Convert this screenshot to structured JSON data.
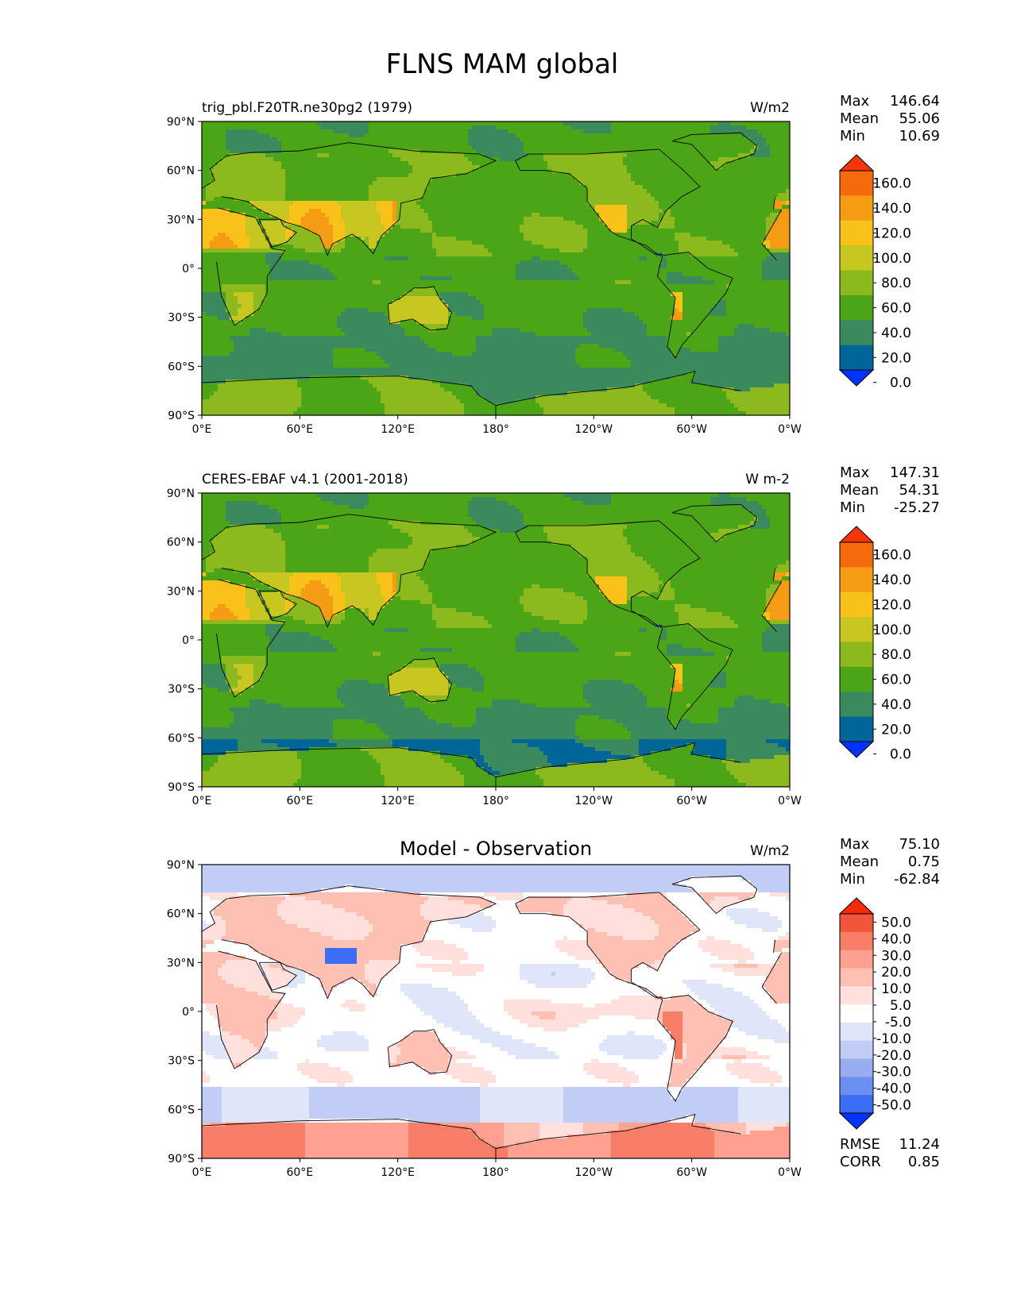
{
  "title": "FLNS MAM global",
  "axes": {
    "lat_ticks": [
      "90°N",
      "60°N",
      "30°N",
      "0°",
      "30°S",
      "60°S",
      "90°S"
    ],
    "lon_ticks": [
      "0°E",
      "60°E",
      "120°E",
      "180°",
      "120°W",
      "60°W",
      "0°W"
    ]
  },
  "colors": {
    "levels_abs": [
      "#0033ff",
      "#006699",
      "#3a8a5e",
      "#4ca516",
      "#8cba1e",
      "#c8c620",
      "#f8c21a",
      "#f59b14",
      "#f46a0c",
      "#f7340a"
    ],
    "levels_diff": [
      "#0033ff",
      "#3b6ef5",
      "#6c8ff2",
      "#98acf0",
      "#c2cdf5",
      "#e0e6fa",
      "#ffffff",
      "#ffe0dc",
      "#ffc0b4",
      "#ffa090",
      "#f87d66",
      "#f2553c",
      "#f72a08"
    ],
    "land_outline": "#000000"
  },
  "chart_data": [
    {
      "type": "heatmap",
      "subtitle": "trig_pbl.F20TR.ne30pg2 (1979)",
      "units": "W/m2",
      "stats": {
        "max_label": "Max",
        "max": "146.64",
        "mean_label": "Mean",
        "mean": "55.06",
        "min_label": "Min",
        "min": "10.69"
      },
      "colorbar_labels": [
        "160.0",
        "140.0",
        "120.0",
        "100.0",
        "80.0",
        "60.0",
        "40.0",
        "20.0",
        "0.0"
      ],
      "colorbar_levels": [
        0,
        20,
        40,
        60,
        80,
        100,
        120,
        140,
        160
      ],
      "xlim": [
        0,
        360
      ],
      "ylim": [
        -90,
        90
      ]
    },
    {
      "type": "heatmap",
      "subtitle": "CERES-EBAF v4.1 (2001-2018)",
      "units": "W m-2",
      "stats": {
        "max_label": "Max",
        "max": "147.31",
        "mean_label": "Mean",
        "mean": "54.31",
        "min_label": "Min",
        "min": "-25.27"
      },
      "colorbar_labels": [
        "160.0",
        "140.0",
        "120.0",
        "100.0",
        "80.0",
        "60.0",
        "40.0",
        "20.0",
        "0.0"
      ],
      "colorbar_levels": [
        0,
        20,
        40,
        60,
        80,
        100,
        120,
        140,
        160
      ],
      "xlim": [
        0,
        360
      ],
      "ylim": [
        -90,
        90
      ]
    },
    {
      "type": "heatmap",
      "subtitle": "Model - Observation",
      "units": "W/m2",
      "stats": {
        "max_label": "Max",
        "max": "75.10",
        "mean_label": "Mean",
        "mean": "0.75",
        "min_label": "Min",
        "min": "-62.84"
      },
      "colorbar_labels": [
        "50.0",
        "40.0",
        "30.0",
        "20.0",
        "10.0",
        "5.0",
        "-5.0",
        "-10.0",
        "-20.0",
        "-30.0",
        "-40.0",
        "-50.0"
      ],
      "colorbar_levels": [
        -50,
        -40,
        -30,
        -20,
        -10,
        -5,
        5,
        10,
        20,
        30,
        40,
        50
      ],
      "rmse_label": "RMSE",
      "rmse": "11.24",
      "corr_label": "CORR",
      "corr": "0.85",
      "xlim": [
        0,
        360
      ],
      "ylim": [
        -90,
        90
      ]
    }
  ]
}
